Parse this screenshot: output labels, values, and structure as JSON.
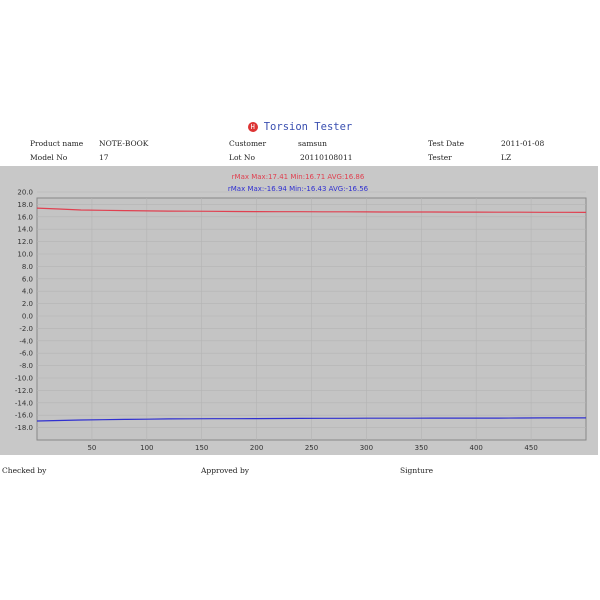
{
  "header": {
    "title": "Torsion Tester",
    "logo_text": "HY"
  },
  "info": {
    "product_name_label": "Product name",
    "product_name": "NOTE-BOOK",
    "customer_label": "Customer",
    "customer": "samsun",
    "test_date_label": "Test Date",
    "test_date": "2011-01-08",
    "model_no_label": "Model No",
    "model_no": "17",
    "lot_no_label": "Lot No",
    "lot_no": "20110108011",
    "tester_label": "Tester",
    "tester": "LZ"
  },
  "footer": {
    "checked_by": "Checked by",
    "approved_by": "Approved by",
    "signature": "Signture"
  },
  "chart_data": {
    "type": "line",
    "xlim": [
      0,
      500
    ],
    "ylim": [
      -20,
      20
    ],
    "grid": true,
    "x_ticks": [
      50,
      100,
      150,
      200,
      250,
      300,
      350,
      400,
      450
    ],
    "y_ticks": [
      "20.0",
      "18.0",
      "16.0",
      "14.0",
      "12.0",
      "10.0",
      "8.0",
      "6.0",
      "4.0",
      "2.0",
      "0.0",
      "-2.0",
      "-4.0",
      "-6.0",
      "-8.0",
      "-10.0",
      "-12.0",
      "-14.0",
      "-16.0",
      "-18.0"
    ],
    "x": [
      0,
      20,
      40,
      60,
      80,
      100,
      120,
      140,
      160,
      180,
      200,
      220,
      240,
      260,
      280,
      300,
      320,
      340,
      360,
      380,
      400,
      420,
      440,
      460,
      480,
      500
    ],
    "series": [
      {
        "name": "rMax",
        "legend": "rMax   Max:17.41 Min:16.71 AVG:16.86",
        "color": "#e04050",
        "values": [
          17.41,
          17.25,
          17.1,
          17.05,
          17.0,
          16.95,
          16.92,
          16.9,
          16.88,
          16.86,
          16.84,
          16.83,
          16.82,
          16.8,
          16.8,
          16.79,
          16.78,
          16.78,
          16.77,
          16.76,
          16.76,
          16.75,
          16.74,
          16.73,
          16.72,
          16.71
        ]
      },
      {
        "name": "rMax",
        "legend": "rMax   Max:-16.94 Min:-16.43 AVG:-16.56",
        "color": "#3030d0",
        "values": [
          -16.94,
          -16.85,
          -16.78,
          -16.72,
          -16.68,
          -16.64,
          -16.6,
          -16.58,
          -16.57,
          -16.56,
          -16.55,
          -16.53,
          -16.52,
          -16.5,
          -16.5,
          -16.49,
          -16.49,
          -16.48,
          -16.47,
          -16.47,
          -16.46,
          -16.46,
          -16.45,
          -16.44,
          -16.44,
          -16.43
        ]
      }
    ]
  }
}
